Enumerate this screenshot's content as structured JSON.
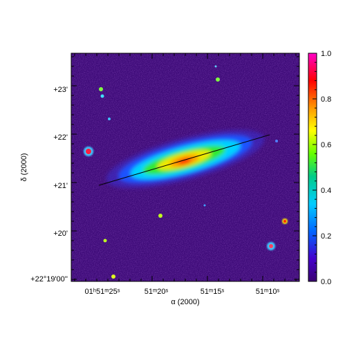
{
  "image": {
    "x_axis_title": "α (2000)",
    "y_axis_title": "δ (2000)",
    "x_tick_labels": [
      {
        "text": "01ʰ51ᵐ25ˢ",
        "ra_sec": 25
      },
      {
        "text": "51ᵐ20ˢ",
        "ra_sec": 20
      },
      {
        "text": "51ᵐ15ˢ",
        "ra_sec": 15
      },
      {
        "text": "51ᵐ10ˢ",
        "ra_sec": 10
      }
    ],
    "y_tick_labels": [
      {
        "text": "+23'",
        "dec_arcmin": 23
      },
      {
        "text": "+22'",
        "dec_arcmin": 22
      },
      {
        "text": "+21'",
        "dec_arcmin": 21
      },
      {
        "text": "+20'",
        "dec_arcmin": 20
      },
      {
        "text": "+22°19'00''",
        "dec_arcmin": 19
      }
    ],
    "colorbar": {
      "ticks": [
        "1.0",
        "0.8",
        "0.6",
        "0.4",
        "0.2",
        "0.0"
      ],
      "colors": [
        "#ff00c8",
        "#ff0000",
        "#ff9900",
        "#ffff00",
        "#66ff00",
        "#00cc88",
        "#00ccff",
        "#0066ff",
        "#4400cc",
        "#3a0070"
      ]
    },
    "colors": {
      "background_field": "#3d0a78",
      "noise_light": "#5a1a9e",
      "galaxy_outer": "#1e52ff",
      "galaxy_mid": "#00d2ff",
      "galaxy_green": "#33e833",
      "galaxy_yellow": "#f0e800",
      "galaxy_core": "#ff2a00",
      "major_axis_line": "#000000"
    }
  }
}
